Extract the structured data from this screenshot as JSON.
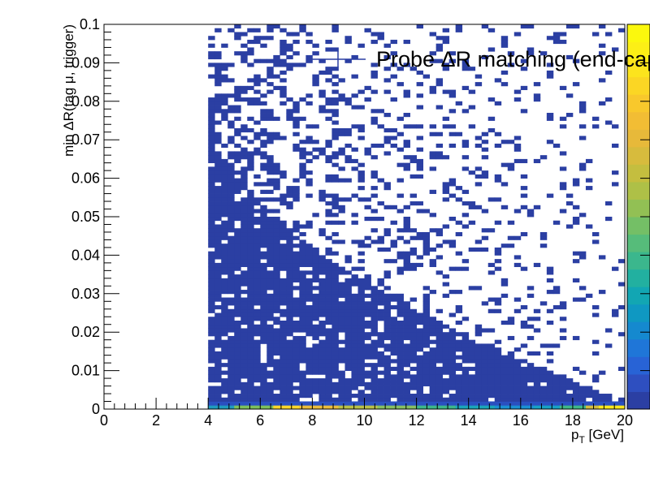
{
  "chart_data": {
    "type": "heatmap",
    "legend": {
      "label": "Probe ΔR matching (end-cap)",
      "placement": "top-right"
    },
    "x_axis": {
      "title_main": "p",
      "title_sub": "T",
      "title_unit": " [GeV]",
      "range": [
        0,
        20
      ],
      "tick_labels": [
        "0",
        "2",
        "4",
        "6",
        "8",
        "10",
        "12",
        "14",
        "16",
        "18",
        "20"
      ]
    },
    "y_axis": {
      "title": "min ΔR(tag μ, trigger)",
      "range": [
        0,
        0.1
      ],
      "tick_labels": [
        "0",
        "0.01",
        "0.02",
        "0.03",
        "0.04",
        "0.05",
        "0.06",
        "0.07",
        "0.08",
        "0.09",
        "0.1"
      ]
    },
    "binning": {
      "x_bin_width": 0.25,
      "y_bin_width": 0.001,
      "filled_x_range": [
        4,
        20
      ]
    },
    "color_scale": {
      "palette": [
        "#2b3fa3",
        "#2e4fc0",
        "#2863d6",
        "#1f76d8",
        "#1589cf",
        "#0f98c2",
        "#12a6b3",
        "#22b0a0",
        "#3bb78d",
        "#56bc7a",
        "#74bf66",
        "#92c054",
        "#aec047",
        "#c4be3f",
        "#d7bb3d",
        "#e7b93a",
        "#f2bd34",
        "#f8c82c",
        "#fbd624",
        "#fce41d",
        "#fcef16",
        "#fbf80d"
      ],
      "zero_suppressed": true
    },
    "features": {
      "bottom_bin_row_colors_by_pt": [
        {
          "x_from": 4.0,
          "x_to": 5.0,
          "color": "#1f9bbd"
        },
        {
          "x_from": 5.0,
          "x_to": 6.5,
          "color": "#7cc05c"
        },
        {
          "x_from": 6.5,
          "x_to": 7.5,
          "color": "#fbd72a"
        },
        {
          "x_from": 7.5,
          "x_to": 9.0,
          "color": "#e9bc3c"
        },
        {
          "x_from": 9.0,
          "x_to": 10.5,
          "color": "#b8c047"
        },
        {
          "x_from": 10.5,
          "x_to": 12.0,
          "color": "#86bf62"
        },
        {
          "x_from": 12.0,
          "x_to": 13.5,
          "color": "#3db789"
        },
        {
          "x_from": 13.5,
          "x_to": 15.0,
          "color": "#1aa5b8"
        },
        {
          "x_from": 15.0,
          "x_to": 16.5,
          "color": "#1a90d2"
        },
        {
          "x_from": 16.5,
          "x_to": 17.5,
          "color": "#17a0c4"
        },
        {
          "x_from": 17.5,
          "x_to": 18.5,
          "color": "#3fb787"
        },
        {
          "x_from": 18.5,
          "x_to": 19.0,
          "color": "#d3bd3f"
        },
        {
          "x_from": 19.0,
          "x_to": 20.0,
          "color": "#fbe81c"
        }
      ],
      "second_row_color": "#2a4fc0",
      "low_count_color": "#2b3fa3",
      "solid_band_y_max_start": 0.076,
      "solid_band_y_max_end": 0.002,
      "scatter_density_start": 0.62,
      "scatter_density_end": 0.06
    }
  }
}
